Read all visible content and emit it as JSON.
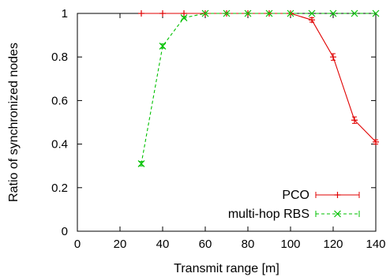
{
  "chart_data": {
    "type": "line",
    "xlabel": "Transmit range [m]",
    "ylabel": "Ratio of synchronized nodes",
    "xlim": [
      0,
      140
    ],
    "ylim": [
      0,
      1
    ],
    "xticks": [
      0,
      20,
      40,
      60,
      80,
      100,
      120,
      140
    ],
    "yticks": [
      0,
      0.2,
      0.4,
      0.6,
      0.8,
      1
    ],
    "ytick_labels": [
      "0",
      "0.2",
      "0.4",
      "0.6",
      "0.8",
      "1"
    ],
    "grid": false,
    "legend_position": "bottom-right",
    "series": [
      {
        "name": "PCO",
        "color": "#e00000",
        "line_style": "solid",
        "marker": "plus",
        "error_bars": true,
        "x": [
          30,
          40,
          50,
          60,
          70,
          80,
          90,
          100,
          110,
          120,
          130,
          140
        ],
        "y": [
          1,
          1,
          1,
          1,
          1,
          1,
          1,
          1,
          0.97,
          0.8,
          0.51,
          0.41
        ],
        "err": [
          0,
          0,
          0,
          0,
          0,
          0,
          0,
          0,
          0.01,
          0.015,
          0.015,
          0.01
        ]
      },
      {
        "name": "multi-hop RBS",
        "color": "#00c000",
        "line_style": "dashed",
        "marker": "x",
        "error_bars": true,
        "x": [
          30,
          40,
          50,
          60,
          70,
          80,
          90,
          100,
          110,
          120,
          130,
          140
        ],
        "y": [
          0.31,
          0.85,
          0.98,
          1,
          1,
          1,
          1,
          1,
          1,
          1,
          1,
          1
        ],
        "err": [
          0.01,
          0.01,
          0.005,
          0,
          0,
          0,
          0,
          0,
          0,
          0,
          0,
          0
        ]
      }
    ]
  }
}
